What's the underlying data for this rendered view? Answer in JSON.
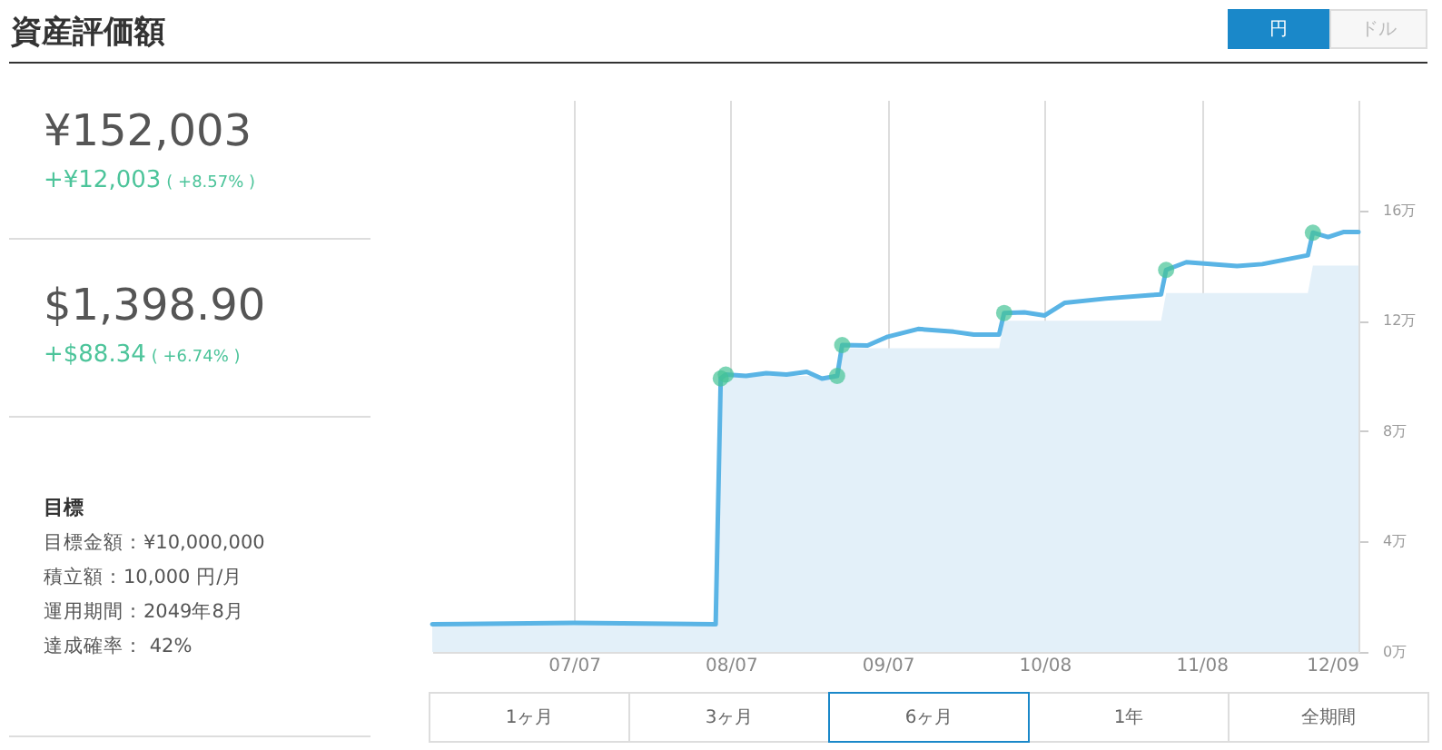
{
  "chart_data": [
    {
      "type": "other",
      "title": "資産評価額",
      "annotations": [
        "¥152,003",
        "+¥12,003",
        "( +8.57% )",
        "$1,398.90",
        "+$88.34",
        "( +6.74% )",
        "目標",
        "目標金額：¥10,000,000",
        "積立額：10,000 円/月",
        "運用期間：2049年8月",
        "達成確率： 42%"
      ]
    },
    {
      "type": "line",
      "annotations": [
        "円",
        "ドル",
        "1ヶ月",
        "3ヶ月",
        "6ヶ月",
        "1年",
        "全期間"
      ],
      "xlim": [
        "--06-09",
        "--12-09"
      ],
      "xticks": [
        {
          "value": "--07-07",
          "label": "07/07"
        },
        {
          "value": "--08-07",
          "label": "08/07"
        },
        {
          "value": "--09-07",
          "label": "09/07"
        },
        {
          "value": "--10-08",
          "label": "10/08"
        },
        {
          "value": "--11-08",
          "label": "11/08"
        },
        {
          "value": "--12-09",
          "label": "12/09"
        }
      ],
      "ylim": [
        0,
        20
      ],
      "yticks": [
        {
          "value": 0,
          "label": "0万"
        },
        {
          "value": 4,
          "label": "4万"
        },
        {
          "value": 8,
          "label": "8万"
        },
        {
          "value": 12,
          "label": "12万"
        },
        {
          "value": 16,
          "label": "16万"
        }
      ],
      "grid": "x",
      "series": [
        {
          "type": "area",
          "color": "#e3f0f9",
          "x": [
            "--06-09",
            "--08-04",
            "--08-05",
            "--08-28",
            "--08-29",
            "--09-29",
            "--09-30",
            "--10-31",
            "--11-01",
            "--11-29",
            "--11-30",
            "--12-09"
          ],
          "values": [
            1,
            1,
            10,
            10,
            11,
            11,
            12,
            12,
            13,
            13,
            14,
            14
          ]
        },
        {
          "color": "#5ab4e5",
          "x": [
            "--06-09",
            "--07-07",
            "--08-04",
            "--08-05",
            "--08-06",
            "--08-10",
            "--08-14",
            "--08-18",
            "--08-22",
            "--08-25",
            "--08-28",
            "--08-29",
            "--09-03",
            "--09-07",
            "--09-13",
            "--09-20",
            "--09-24",
            "--09-29",
            "--09-30",
            "--10-04",
            "--10-08",
            "--10-12",
            "--10-20",
            "--10-29",
            "--10-31",
            "--11-01",
            "--11-05",
            "--11-15",
            "--11-20",
            "--11-29",
            "--11-30",
            "--12-03",
            "--12-06",
            "--12-09"
          ],
          "values": [
            1,
            1.05,
            1,
            9.91,
            10.05,
            10,
            10.1,
            10.05,
            10.15,
            9.9,
            10,
            11.12,
            11.1,
            11.42,
            11.7,
            11.6,
            11.5,
            11.5,
            12.28,
            12.3,
            12.19,
            12.65,
            12.8,
            12.93,
            12.95,
            13.84,
            14.12,
            13.98,
            14.05,
            14.37,
            15.19,
            15.03,
            15.21,
            15.21
          ]
        },
        {
          "type": "scatter",
          "color": "#45c396",
          "marker": "circle",
          "x": [
            "--08-05",
            "--08-06",
            "--08-28",
            "--08-29",
            "--09-30",
            "--11-01",
            "--11-30"
          ],
          "values": [
            9.91,
            10.05,
            10,
            11.12,
            12.28,
            13.84,
            15.19
          ]
        }
      ]
    }
  ]
}
